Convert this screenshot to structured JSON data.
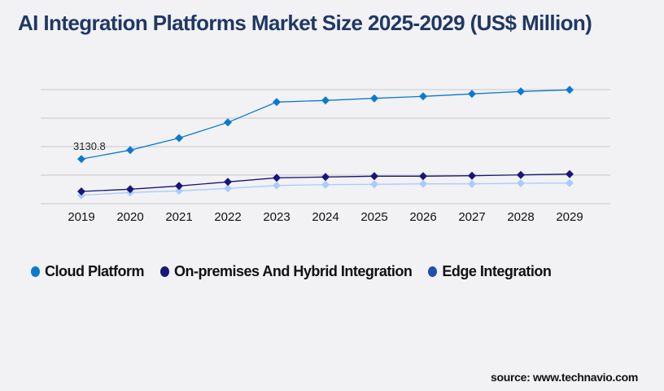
{
  "chart_data": {
    "type": "line",
    "title": "AI Integration Platforms Market Size 2025-2029 (US$ Million)",
    "xlabel": "",
    "ylabel": "",
    "categories": [
      "2019",
      "2020",
      "2021",
      "2022",
      "2023",
      "2024",
      "2025",
      "2026",
      "2027",
      "2028",
      "2029"
    ],
    "ylim": [
      0,
      8000
    ],
    "grid": true,
    "legend_position": "bottom-left",
    "series": [
      {
        "name": "Cloud Platform",
        "color": "#0a7ad1",
        "legend_color": "#0a7ad1",
        "values": [
          3130.8,
          3754,
          4600,
          5697,
          7126,
          7240,
          7389,
          7526,
          7697,
          7869,
          7983
        ]
      },
      {
        "name": "On-premises And Hybrid Integration",
        "color": "#1a1578",
        "legend_color": "#1a1578",
        "values": [
          857,
          1011,
          1240,
          1526,
          1811,
          1869,
          1926,
          1926,
          1960,
          2017,
          2074
        ]
      },
      {
        "name": "Edge Integration",
        "color": "#a9cbff",
        "legend_color": "#1e4fae",
        "values": [
          589,
          783,
          897,
          1069,
          1274,
          1331,
          1354,
          1389,
          1389,
          1429,
          1446
        ]
      }
    ],
    "annotations": [
      {
        "series": 0,
        "category": "2019",
        "text": "3130.8"
      }
    ]
  },
  "source": "source: www.technavio.com"
}
